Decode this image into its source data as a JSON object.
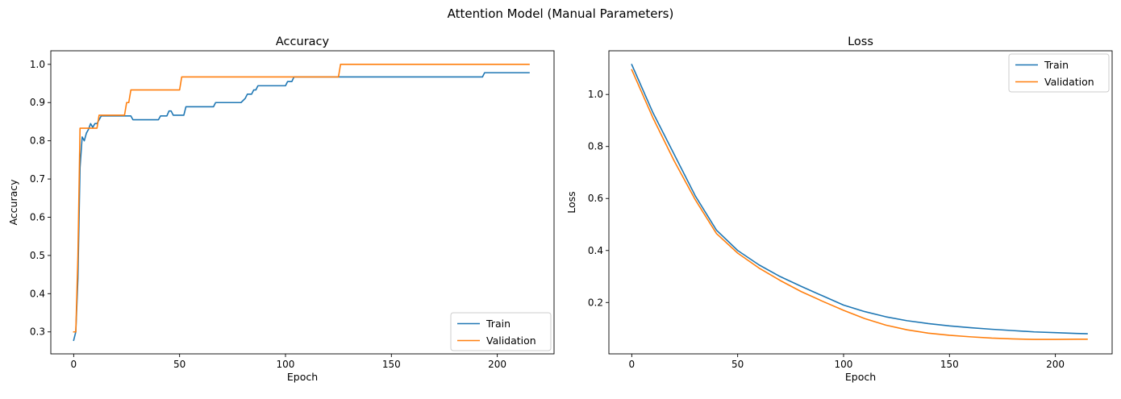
{
  "figure_title": "Attention Model (Manual Parameters)",
  "colors": {
    "train": "#1f77b4",
    "validation": "#ff7f0e"
  },
  "chart_data": [
    {
      "id": "accuracy",
      "type": "line",
      "title": "Accuracy",
      "xlabel": "Epoch",
      "ylabel": "Accuracy",
      "xlim": [
        -10.8,
        226.8
      ],
      "ylim": [
        0.2425,
        1.0355
      ],
      "xticks": [
        0,
        50,
        100,
        150,
        200
      ],
      "yticks": [
        0.3,
        0.4,
        0.5,
        0.6,
        0.7,
        0.8,
        0.9,
        1.0
      ],
      "ytick_labels": [
        "0.3",
        "0.4",
        "0.5",
        "0.6",
        "0.7",
        "0.8",
        "0.9",
        "1.0"
      ],
      "legend_position": "lower right",
      "grid": false,
      "series": [
        {
          "name": "Train",
          "color": "#1f77b4",
          "points": [
            [
              0,
              0.278
            ],
            [
              1,
              0.3
            ],
            [
              2,
              0.44
            ],
            [
              3,
              0.73
            ],
            [
              4,
              0.81
            ],
            [
              5,
              0.8
            ],
            [
              6,
              0.82
            ],
            [
              7,
              0.83
            ],
            [
              8,
              0.845
            ],
            [
              9,
              0.835
            ],
            [
              10,
              0.845
            ],
            [
              11,
              0.845
            ],
            [
              12,
              0.855
            ],
            [
              13,
              0.865
            ],
            [
              27,
              0.865
            ],
            [
              28,
              0.855
            ],
            [
              40,
              0.855
            ],
            [
              41,
              0.865
            ],
            [
              44,
              0.865
            ],
            [
              45,
              0.878
            ],
            [
              46,
              0.878
            ],
            [
              47,
              0.867
            ],
            [
              52,
              0.867
            ],
            [
              53,
              0.889
            ],
            [
              66,
              0.889
            ],
            [
              67,
              0.9
            ],
            [
              79,
              0.9
            ],
            [
              81,
              0.911
            ],
            [
              82,
              0.922
            ],
            [
              84,
              0.922
            ],
            [
              85,
              0.933
            ],
            [
              86,
              0.933
            ],
            [
              87,
              0.944
            ],
            [
              100,
              0.944
            ],
            [
              101,
              0.955
            ],
            [
              103,
              0.955
            ],
            [
              104,
              0.967
            ],
            [
              193,
              0.967
            ],
            [
              194,
              0.978
            ],
            [
              215,
              0.978
            ]
          ]
        },
        {
          "name": "Validation",
          "color": "#ff7f0e",
          "points": [
            [
              0,
              0.3
            ],
            [
              1,
              0.3
            ],
            [
              2,
              0.5
            ],
            [
              3,
              0.833
            ],
            [
              11,
              0.833
            ],
            [
              12,
              0.867
            ],
            [
              24,
              0.867
            ],
            [
              25,
              0.9
            ],
            [
              26,
              0.9
            ],
            [
              27,
              0.933
            ],
            [
              50,
              0.933
            ],
            [
              51,
              0.967
            ],
            [
              125,
              0.967
            ],
            [
              126,
              1.0
            ],
            [
              215,
              1.0
            ]
          ]
        }
      ]
    },
    {
      "id": "loss",
      "type": "line",
      "title": "Loss",
      "xlabel": "Epoch",
      "ylabel": "Loss",
      "xlim": [
        -10.8,
        226.8
      ],
      "ylim": [
        0.0025,
        1.168
      ],
      "xticks": [
        0,
        50,
        100,
        150,
        200
      ],
      "yticks": [
        0.2,
        0.4,
        0.6,
        0.8,
        1.0
      ],
      "ytick_labels": [
        "0.2",
        "0.4",
        "0.6",
        "0.8",
        "1.0"
      ],
      "legend_position": "upper right",
      "grid": false,
      "series": [
        {
          "name": "Train",
          "color": "#1f77b4",
          "points": [
            [
              0,
              1.115
            ],
            [
              10,
              0.93
            ],
            [
              20,
              0.77
            ],
            [
              30,
              0.61
            ],
            [
              40,
              0.478
            ],
            [
              50,
              0.4
            ],
            [
              60,
              0.345
            ],
            [
              70,
              0.3
            ],
            [
              80,
              0.262
            ],
            [
              90,
              0.226
            ],
            [
              100,
              0.19
            ],
            [
              110,
              0.165
            ],
            [
              120,
              0.145
            ],
            [
              130,
              0.13
            ],
            [
              140,
              0.119
            ],
            [
              150,
              0.11
            ],
            [
              160,
              0.103
            ],
            [
              170,
              0.097
            ],
            [
              180,
              0.092
            ],
            [
              190,
              0.087
            ],
            [
              200,
              0.084
            ],
            [
              210,
              0.081
            ],
            [
              215,
              0.08
            ]
          ]
        },
        {
          "name": "Validation",
          "color": "#ff7f0e",
          "points": [
            [
              0,
              1.095
            ],
            [
              10,
              0.91
            ],
            [
              20,
              0.745
            ],
            [
              30,
              0.595
            ],
            [
              40,
              0.465
            ],
            [
              50,
              0.39
            ],
            [
              60,
              0.333
            ],
            [
              70,
              0.285
            ],
            [
              80,
              0.242
            ],
            [
              90,
              0.205
            ],
            [
              100,
              0.17
            ],
            [
              110,
              0.138
            ],
            [
              120,
              0.113
            ],
            [
              130,
              0.095
            ],
            [
              140,
              0.082
            ],
            [
              150,
              0.074
            ],
            [
              160,
              0.068
            ],
            [
              170,
              0.063
            ],
            [
              180,
              0.06
            ],
            [
              190,
              0.058
            ],
            [
              200,
              0.058
            ],
            [
              210,
              0.059
            ],
            [
              215,
              0.059
            ]
          ]
        }
      ]
    }
  ]
}
